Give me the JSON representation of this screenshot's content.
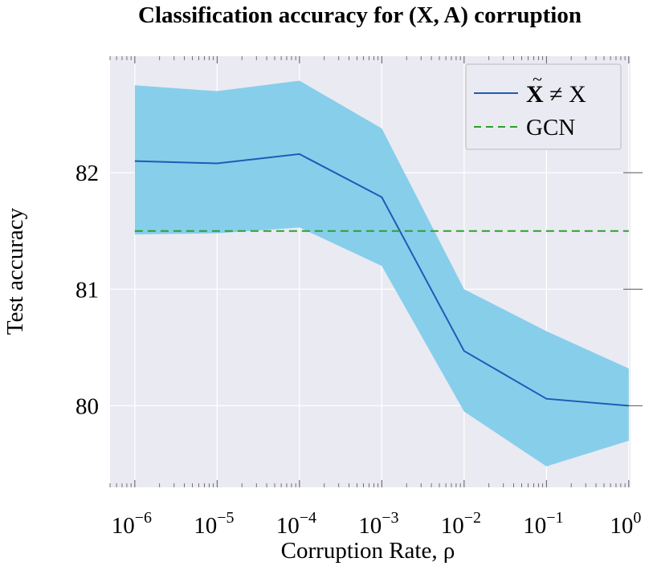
{
  "chart_data": {
    "type": "line",
    "title": "Classification accuracy for (X, A) corruption",
    "xlabel": "Corruption Rate, ρ",
    "ylabel": "Test accuracy",
    "x": [
      1e-06,
      1e-05,
      0.0001,
      0.001,
      0.01,
      0.1,
      1
    ],
    "xscale": "log",
    "xlim": [
      5e-07,
      1.05
    ],
    "ylim": [
      79.3,
      83.0
    ],
    "x_tick_labels": [
      {
        "base": "10",
        "exp": "−6",
        "value": 1e-06
      },
      {
        "base": "10",
        "exp": "−5",
        "value": 1e-05
      },
      {
        "base": "10",
        "exp": "−4",
        "value": 0.0001
      },
      {
        "base": "10",
        "exp": "−3",
        "value": 0.001
      },
      {
        "base": "10",
        "exp": "−2",
        "value": 0.01
      },
      {
        "base": "10",
        "exp": "−1",
        "value": 0.1
      },
      {
        "base": "10",
        "exp": "0",
        "value": 1
      }
    ],
    "y_ticks": [
      80,
      81,
      82
    ],
    "y_tick_labels": [
      "80",
      "81",
      "82"
    ],
    "grid": true,
    "legend_position": "top-right",
    "series": [
      {
        "name": "X̃ ≠ X",
        "legend_main": "X",
        "legend_rest": " ≠ X",
        "style": "solid",
        "color": "#1f5bb5",
        "values": [
          82.1,
          82.08,
          82.16,
          81.79,
          80.47,
          80.06,
          80.0
        ],
        "band_upper": [
          82.75,
          82.7,
          82.79,
          82.38,
          81.0,
          80.64,
          80.32
        ],
        "band_lower": [
          81.47,
          81.48,
          81.53,
          81.2,
          79.95,
          79.48,
          79.7
        ],
        "band_color": "#87ceeb"
      },
      {
        "name": "GCN",
        "style": "dashed",
        "color": "#2ca02c",
        "values": [
          81.5,
          81.5,
          81.5,
          81.5,
          81.5,
          81.5,
          81.5
        ]
      }
    ],
    "colors": {
      "plot_background": "#eaeaf2",
      "grid": "#ffffff",
      "band": "#87ceeb",
      "line": "#1f5bb5",
      "baseline": "#2ca02c"
    }
  }
}
